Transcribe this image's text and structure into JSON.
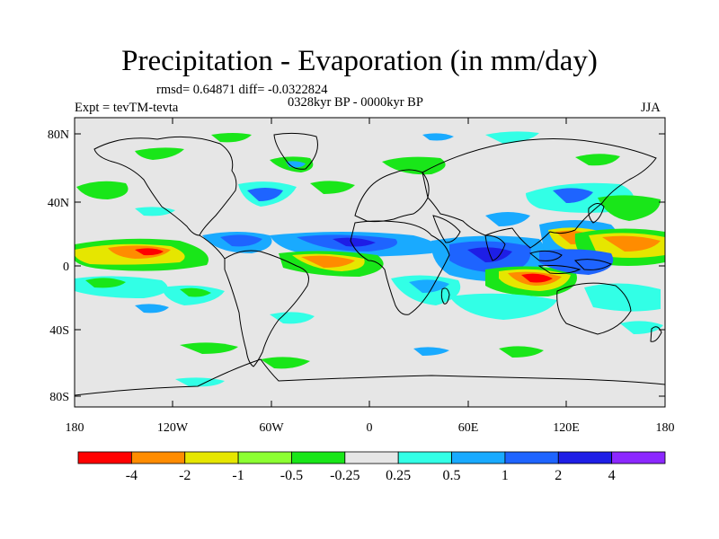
{
  "title": "Precipitation - Evaporation (in mm/day)",
  "stats_line": "rmsd= 0.64871 diff= -0.0322824",
  "left_label": "Expt = tevTM-tevta",
  "center_label": "0328kyr BP - 0000kyr BP",
  "right_label": "JJA",
  "lat_ticks": [
    "80N",
    "40N",
    "0",
    "40S",
    "80S"
  ],
  "lon_ticks": [
    "180",
    "120W",
    "60W",
    "0",
    "60E",
    "120E",
    "180"
  ],
  "colorbar": {
    "colors": [
      "#ff0000",
      "#ff8c00",
      "#e6e600",
      "#8cff32",
      "#19e619",
      "#e6e6e6",
      "#32ffe6",
      "#19aaff",
      "#1e64ff",
      "#1e1ee6",
      "#8c28ff"
    ],
    "labels": [
      "-4",
      "-2",
      "-1",
      "-0.5",
      "-0.25",
      "0.25",
      "0.5",
      "1",
      "2",
      "4"
    ]
  },
  "map_background_color": "#e6e6e6"
}
